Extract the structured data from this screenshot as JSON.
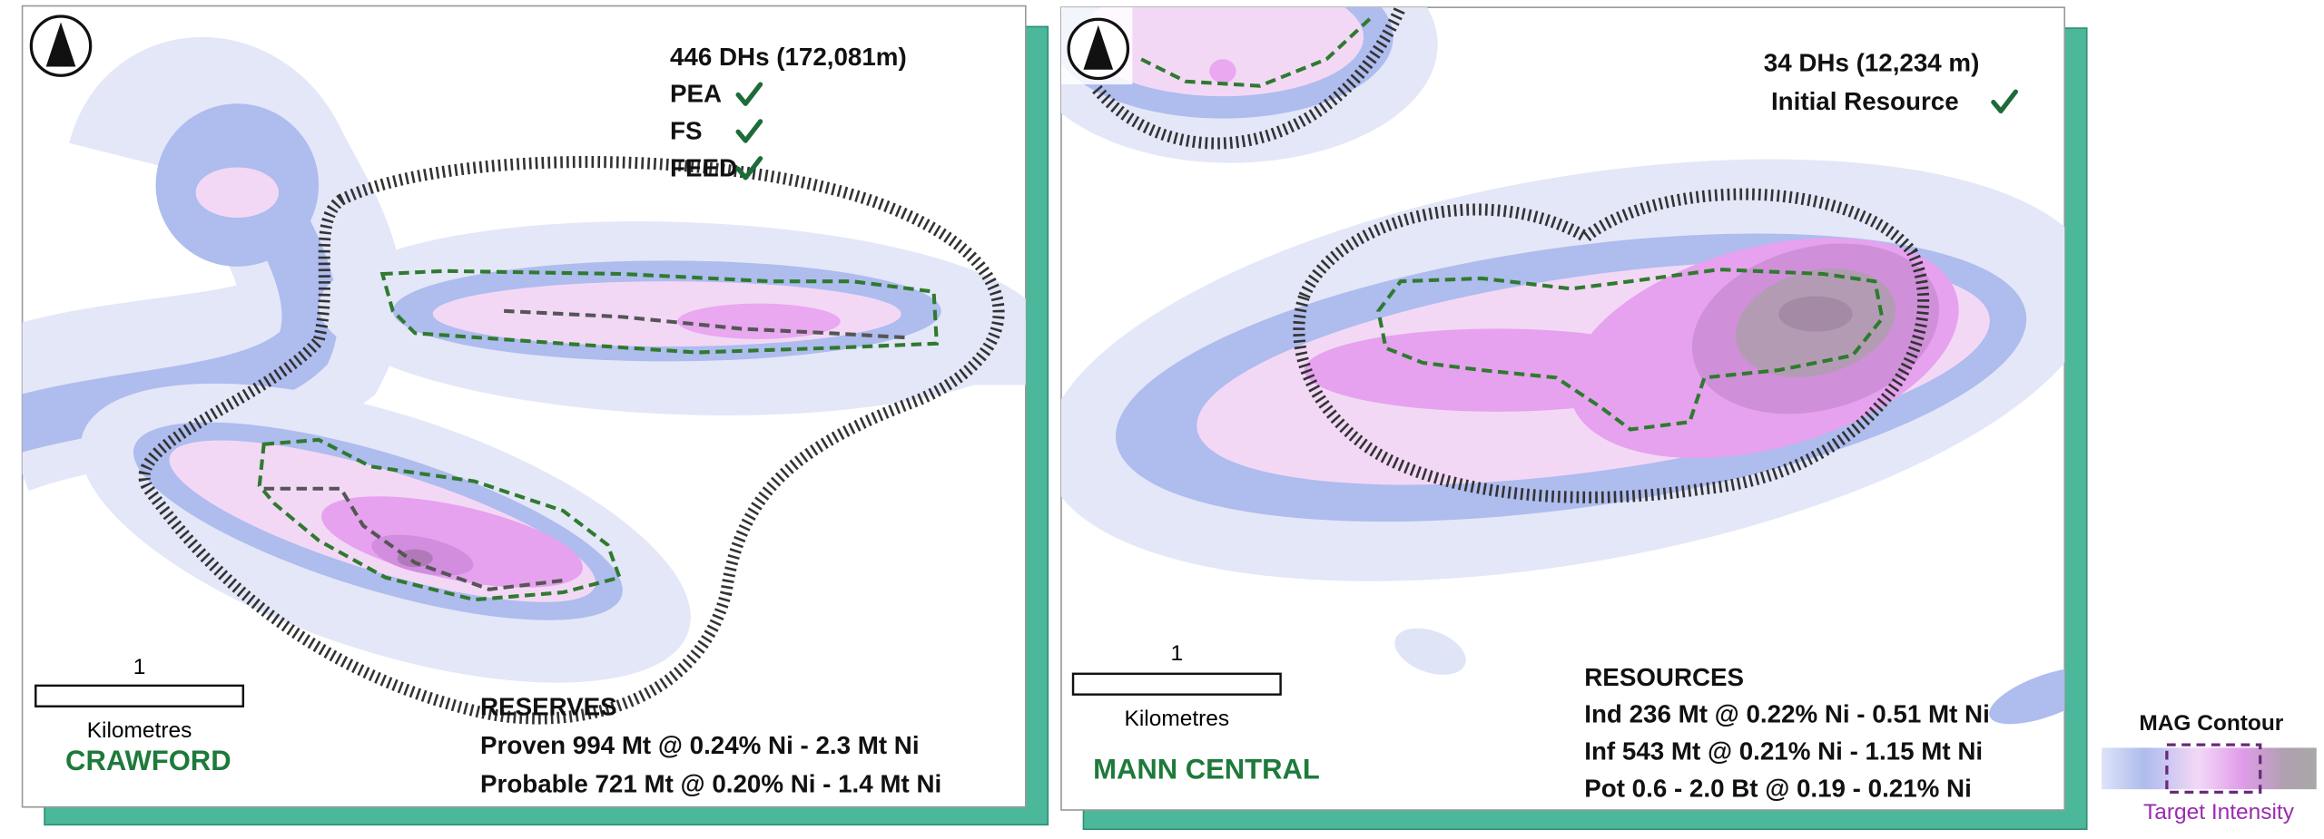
{
  "panels": [
    {
      "stats": [
        "446 DHs (172,081m)"
      ],
      "checklist": [
        "PEA",
        "FS",
        "FEED"
      ],
      "scale": {
        "value": "1",
        "unit": "Kilometres"
      },
      "name": "CRAWFORD",
      "summary": {
        "title": "RESERVES",
        "lines": [
          "Proven 994 Mt @ 0.24% Ni - 2.3 Mt Ni",
          "Probable 721 Mt @ 0.20% Ni - 1.4 Mt Ni"
        ]
      }
    },
    {
      "stats": [
        "34 DHs (12,234 m)"
      ],
      "checklist": [
        "Initial Resource"
      ],
      "scale": {
        "value": "1",
        "unit": "Kilometres"
      },
      "name": "MANN CENTRAL",
      "summary": {
        "title": "RESOURCES",
        "lines": [
          "Ind 236 Mt @ 0.22% Ni - 0.51 Mt Ni",
          "Inf 543 Mt @ 0.21% Ni - 1.15 Mt Ni",
          "Pot 0.6 - 2.0 Bt @ 0.19 - 0.21% Ni"
        ]
      }
    }
  ],
  "legend": {
    "title": "MAG Contour",
    "label": "Target Intensity"
  }
}
